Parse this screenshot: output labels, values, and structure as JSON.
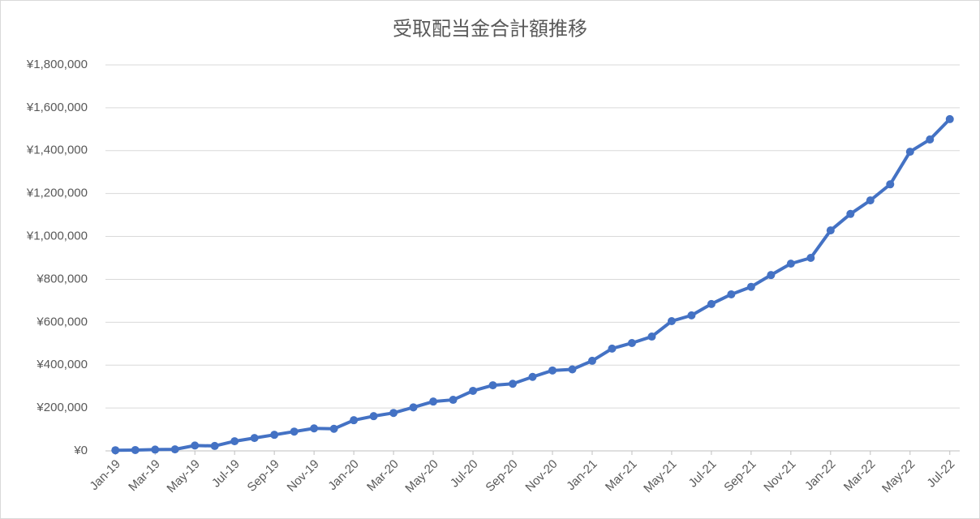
{
  "chart_data": {
    "type": "line",
    "title": "受取配当金合計額推移",
    "categories": [
      "Jan-19",
      null,
      "Mar-19",
      null,
      "May-19",
      null,
      "Jul-19",
      null,
      "Sep-19",
      null,
      "Nov-19",
      null,
      "Jan-20",
      null,
      "Mar-20",
      null,
      "May-20",
      null,
      "Jul-20",
      null,
      "Sep-20",
      null,
      "Nov-20",
      null,
      "Jan-21",
      null,
      "Mar-21",
      null,
      "May-21",
      null,
      "Jul-21",
      null,
      "Sep-21",
      null,
      "Nov-21",
      null,
      "Jan-22",
      null,
      "Mar-22",
      null,
      "May-22",
      null,
      "Jul-22"
    ],
    "values": [
      3000,
      4000,
      6000,
      7000,
      25000,
      23000,
      45000,
      60000,
      75000,
      90000,
      105000,
      103000,
      143000,
      162000,
      177000,
      203000,
      230000,
      238000,
      280000,
      306000,
      313000,
      345000,
      375000,
      380000,
      420000,
      477000,
      503000,
      533000,
      605000,
      632000,
      685000,
      730000,
      765000,
      820000,
      873000,
      900000,
      1028000,
      1105000,
      1168000,
      1243000,
      1395000,
      1452000,
      1547000
    ],
    "color": "#4472c4",
    "ylim": [
      0,
      1800000
    ],
    "yticks": [
      {
        "value": 0,
        "label": "¥0"
      },
      {
        "value": 200000,
        "label": "¥200,000"
      },
      {
        "value": 400000,
        "label": "¥400,000"
      },
      {
        "value": 600000,
        "label": "¥600,000"
      },
      {
        "value": 800000,
        "label": "¥800,000"
      },
      {
        "value": 1000000,
        "label": "¥1,000,000"
      },
      {
        "value": 1200000,
        "label": "¥1,200,000"
      },
      {
        "value": 1400000,
        "label": "¥1,400,000"
      },
      {
        "value": 1600000,
        "label": "¥1,600,000"
      },
      {
        "value": 1800000,
        "label": "¥1,800,000"
      }
    ],
    "grid": true
  }
}
